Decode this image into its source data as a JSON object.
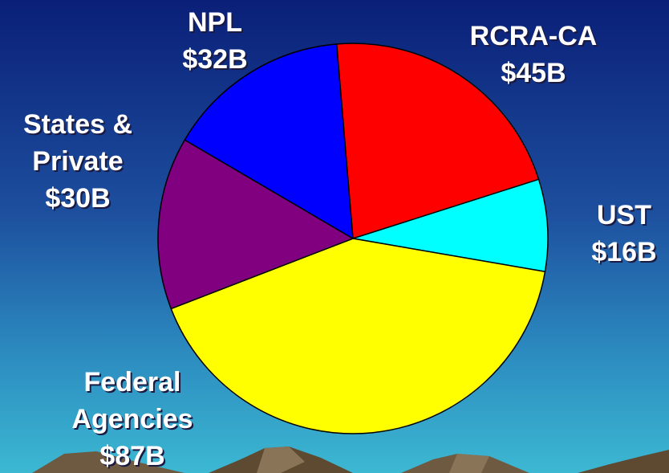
{
  "chart_data": {
    "type": "pie",
    "categories": [
      [
        "RCRA-CA"
      ],
      [
        "UST"
      ],
      [
        "Federal",
        "Agencies"
      ],
      [
        "States &",
        "Private"
      ],
      [
        "NPL"
      ]
    ],
    "values": [
      45,
      16,
      87,
      30,
      32
    ],
    "value_labels": [
      "$45B",
      "$16B",
      "$87B",
      "$30B",
      "$32B"
    ],
    "colors": [
      "#ff0000",
      "#00ffff",
      "#ffff00",
      "#800080",
      "#0000ff"
    ]
  }
}
